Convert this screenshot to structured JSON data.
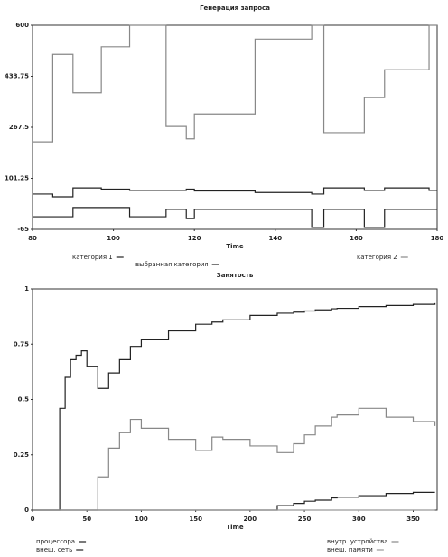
{
  "chart_data": [
    {
      "type": "line",
      "step": true,
      "title": "Генерация запроса",
      "x_label": "Time",
      "x": [
        80,
        85,
        90,
        97,
        104,
        113,
        118,
        120,
        135,
        149,
        152,
        162,
        167,
        178,
        180
      ],
      "xlim": [
        80,
        180
      ],
      "xticks": [
        80,
        100,
        120,
        140,
        160,
        180
      ],
      "ylim": [
        -65,
        600
      ],
      "yticks": [
        -65,
        101.25,
        267.5,
        433.75,
        600
      ],
      "legend": "bottom",
      "series": [
        {
          "name": "категория 1",
          "color": "#222222",
          "values": [
            50,
            41,
            70,
            66,
            62,
            62,
            66,
            60,
            55,
            50,
            70,
            62,
            70,
            62,
            62
          ]
        },
        {
          "name": "выбранная категория",
          "color": "#222222",
          "values": [
            -24,
            -24,
            6,
            6,
            -24,
            0,
            -30,
            0,
            0,
            -59,
            0,
            -59,
            0,
            0,
            0
          ]
        },
        {
          "name": "категория 2",
          "color": "#888888",
          "values": [
            220,
            505,
            380,
            530,
            600,
            270,
            230,
            311,
            555,
            600,
            250,
            364,
            455,
            600,
            600
          ]
        }
      ]
    },
    {
      "type": "line",
      "step": true,
      "title": "Занятость",
      "x_label": "Time",
      "x": [
        0,
        25,
        30,
        35,
        40,
        45,
        50,
        60,
        70,
        80,
        90,
        100,
        125,
        150,
        165,
        175,
        200,
        225,
        240,
        250,
        260,
        275,
        280,
        300,
        325,
        350,
        370
      ],
      "xlim": [
        0,
        372
      ],
      "xticks": [
        0,
        50,
        100,
        150,
        200,
        250,
        300,
        350
      ],
      "ylim": [
        0,
        1
      ],
      "yticks": [
        0,
        0.25,
        0.5,
        0.75,
        1
      ],
      "legend": "bottom",
      "series": [
        {
          "name": "процессора",
          "color": "#222222",
          "values": [
            0,
            0.46,
            0.6,
            0.68,
            0.7,
            0.72,
            0.65,
            0.55,
            0.62,
            0.68,
            0.74,
            0.77,
            0.81,
            0.84,
            0.85,
            0.86,
            0.88,
            0.89,
            0.895,
            0.9,
            0.905,
            0.91,
            0.912,
            0.92,
            0.925,
            0.93,
            0.935
          ]
        },
        {
          "name": "внеш. сеть",
          "color": "#222222",
          "values": [
            0,
            0,
            0,
            0,
            0,
            0,
            0,
            0,
            0,
            0,
            0,
            0,
            0,
            0,
            0,
            0,
            0,
            0.02,
            0.03,
            0.04,
            0.045,
            0.055,
            0.058,
            0.065,
            0.075,
            0.08,
            0.08
          ]
        },
        {
          "name": "внутр. устройства",
          "color": "#888888",
          "values": [
            0,
            0,
            0,
            0,
            0,
            0,
            0,
            0.15,
            0.28,
            0.35,
            0.41,
            0.37,
            0.32,
            0.27,
            0.33,
            0.32,
            0.29,
            0.26,
            0.3,
            0.34,
            0.38,
            0.42,
            0.43,
            0.46,
            0.42,
            0.4,
            0.38
          ]
        },
        {
          "name": "внеш. памяти",
          "color": "#999999",
          "values": [
            0,
            0,
            0,
            0,
            0,
            0,
            0,
            0,
            0,
            0,
            0,
            0,
            0,
            0,
            0,
            0,
            0,
            0,
            0,
            0,
            0,
            0,
            0,
            0,
            0,
            0,
            0
          ]
        }
      ]
    }
  ]
}
